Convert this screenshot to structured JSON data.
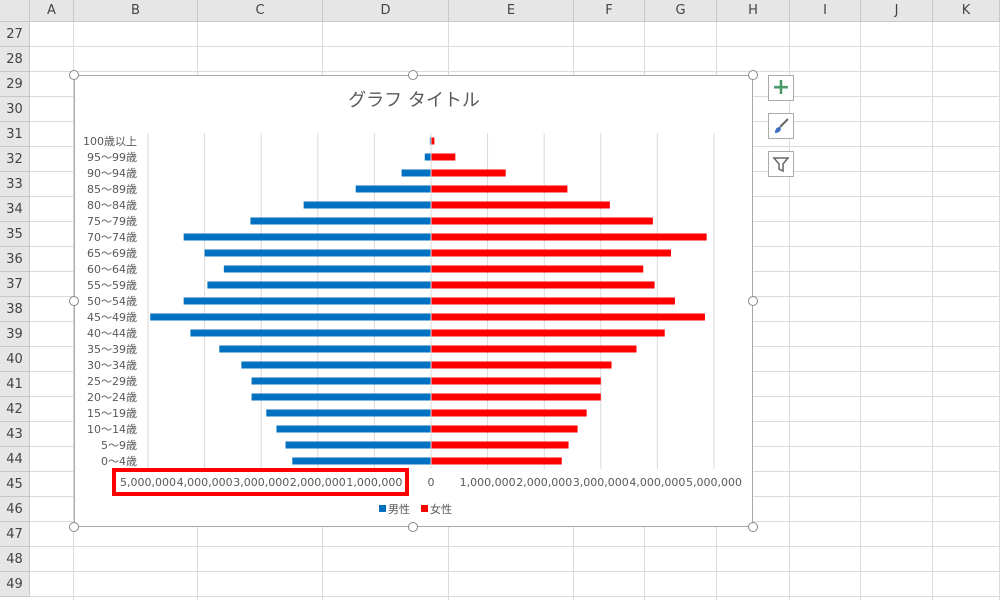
{
  "sheet": {
    "columns": [
      "A",
      "B",
      "C",
      "D",
      "E",
      "F",
      "G",
      "H",
      "I",
      "J",
      "K"
    ],
    "rows": [
      "27",
      "28",
      "29",
      "30",
      "31",
      "32",
      "33",
      "34",
      "35",
      "36",
      "37",
      "38",
      "39",
      "40",
      "41",
      "42",
      "43",
      "44",
      "45",
      "46",
      "47",
      "48",
      "49"
    ]
  },
  "chart_buttons": [
    {
      "icon": "plus-icon",
      "color": "#4a9a6a"
    },
    {
      "icon": "brush-icon",
      "color": "#3a6fc4"
    },
    {
      "icon": "filter-icon",
      "color": "#666666"
    }
  ],
  "chart_data": {
    "type": "bar",
    "orientation": "horizontal",
    "title": "グラフ タイトル",
    "categories": [
      "100歳以上",
      "95〜99歳",
      "90〜94歳",
      "85〜89歳",
      "80〜84歳",
      "75〜79歳",
      "70〜74歳",
      "65〜69歳",
      "60〜64歳",
      "55〜59歳",
      "50〜54歳",
      "45〜49歳",
      "40〜44歳",
      "35〜39歳",
      "30〜34歳",
      "25〜29歳",
      "20〜24歳",
      "15〜19歳",
      "10〜14歳",
      "5〜9歳",
      "0〜4歳"
    ],
    "series": [
      {
        "name": "男性",
        "color": "#0070c0",
        "values": [
          20000,
          110000,
          520000,
          1330000,
          2250000,
          3190000,
          4370000,
          4000000,
          3660000,
          3950000,
          4370000,
          4960000,
          4250000,
          3740000,
          3350000,
          3170000,
          3170000,
          2910000,
          2730000,
          2570000,
          2450000
        ]
      },
      {
        "name": "女性",
        "color": "#ff0000",
        "values": [
          60000,
          430000,
          1320000,
          2410000,
          3160000,
          3920000,
          4870000,
          4240000,
          3750000,
          3950000,
          4310000,
          4840000,
          4130000,
          3630000,
          3190000,
          3000000,
          3000000,
          2750000,
          2590000,
          2430000,
          2310000
        ]
      }
    ],
    "xlim": [
      -5000000,
      5000000
    ],
    "x_tick_labels_left": [
      "5,000,000",
      "4,000,000",
      "3,000,000",
      "2,000,000",
      "1,000,000"
    ],
    "x_tick_labels_right": [
      "0",
      "1,000,000",
      "2,000,000",
      "3,000,000",
      "4,000,000",
      "5,000,000"
    ],
    "grid": true,
    "legend": "bottom",
    "highlight_color": "#ff0000"
  }
}
